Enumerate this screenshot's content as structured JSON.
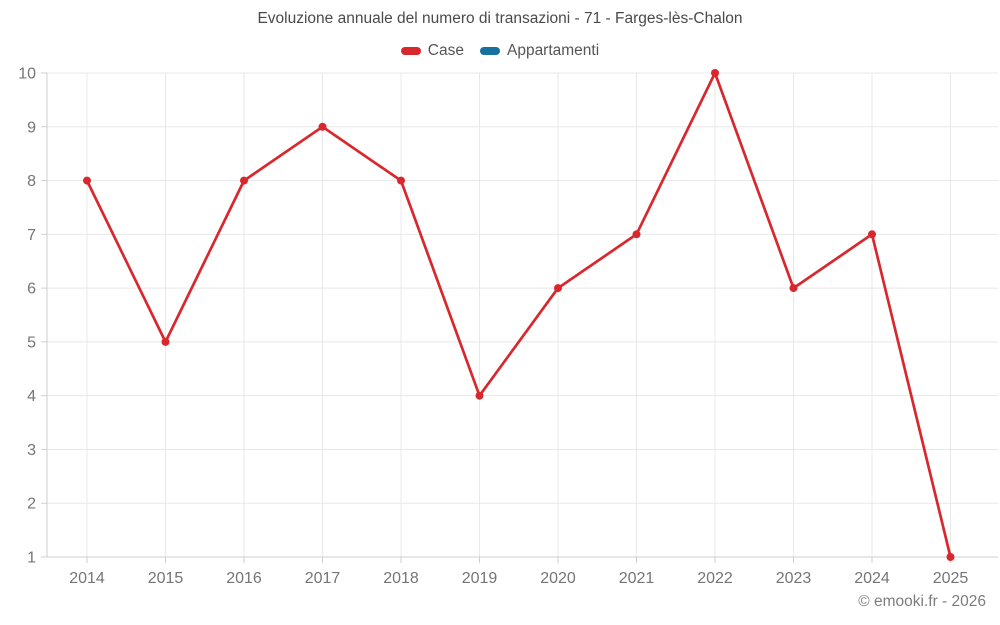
{
  "header": {
    "title": "Evoluzione annuale del numero di transazioni - 71 - Farges-lès-Chalon"
  },
  "legend": {
    "position": "top",
    "items": [
      {
        "label": "Case",
        "color": "#d8282e"
      },
      {
        "label": "Appartamenti",
        "color": "#17719f"
      }
    ]
  },
  "footer": {
    "watermark": "© emooki.fr - 2026"
  },
  "chart_data": {
    "type": "line",
    "title": "Evoluzione annuale del numero di transazioni - 71 - Farges-lès-Chalon",
    "categories": [
      "2014",
      "2015",
      "2016",
      "2017",
      "2018",
      "2019",
      "2020",
      "2021",
      "2022",
      "2023",
      "2024",
      "2025"
    ],
    "series": [
      {
        "name": "Case",
        "color": "#d8282e",
        "values": [
          8,
          5,
          8,
          9,
          8,
          4,
          6,
          7,
          10,
          6,
          7,
          1
        ]
      },
      {
        "name": "Appartamenti",
        "color": "#17719f",
        "values": []
      }
    ],
    "xlabel": "",
    "ylabel": "",
    "ylim": [
      1,
      10
    ],
    "y_ticks": [
      1,
      2,
      3,
      4,
      5,
      6,
      7,
      8,
      9,
      10
    ],
    "grid": true,
    "marker": "circle",
    "legend_position": "top"
  },
  "style": {
    "background": "#ffffff",
    "grid_color": "#e8e8e8",
    "axis_color": "#cfcfcf",
    "tick_label_color": "#757575",
    "title_color": "#4a4a4a",
    "legend_text_color": "#565656",
    "watermark_color": "#7d7d7d"
  }
}
